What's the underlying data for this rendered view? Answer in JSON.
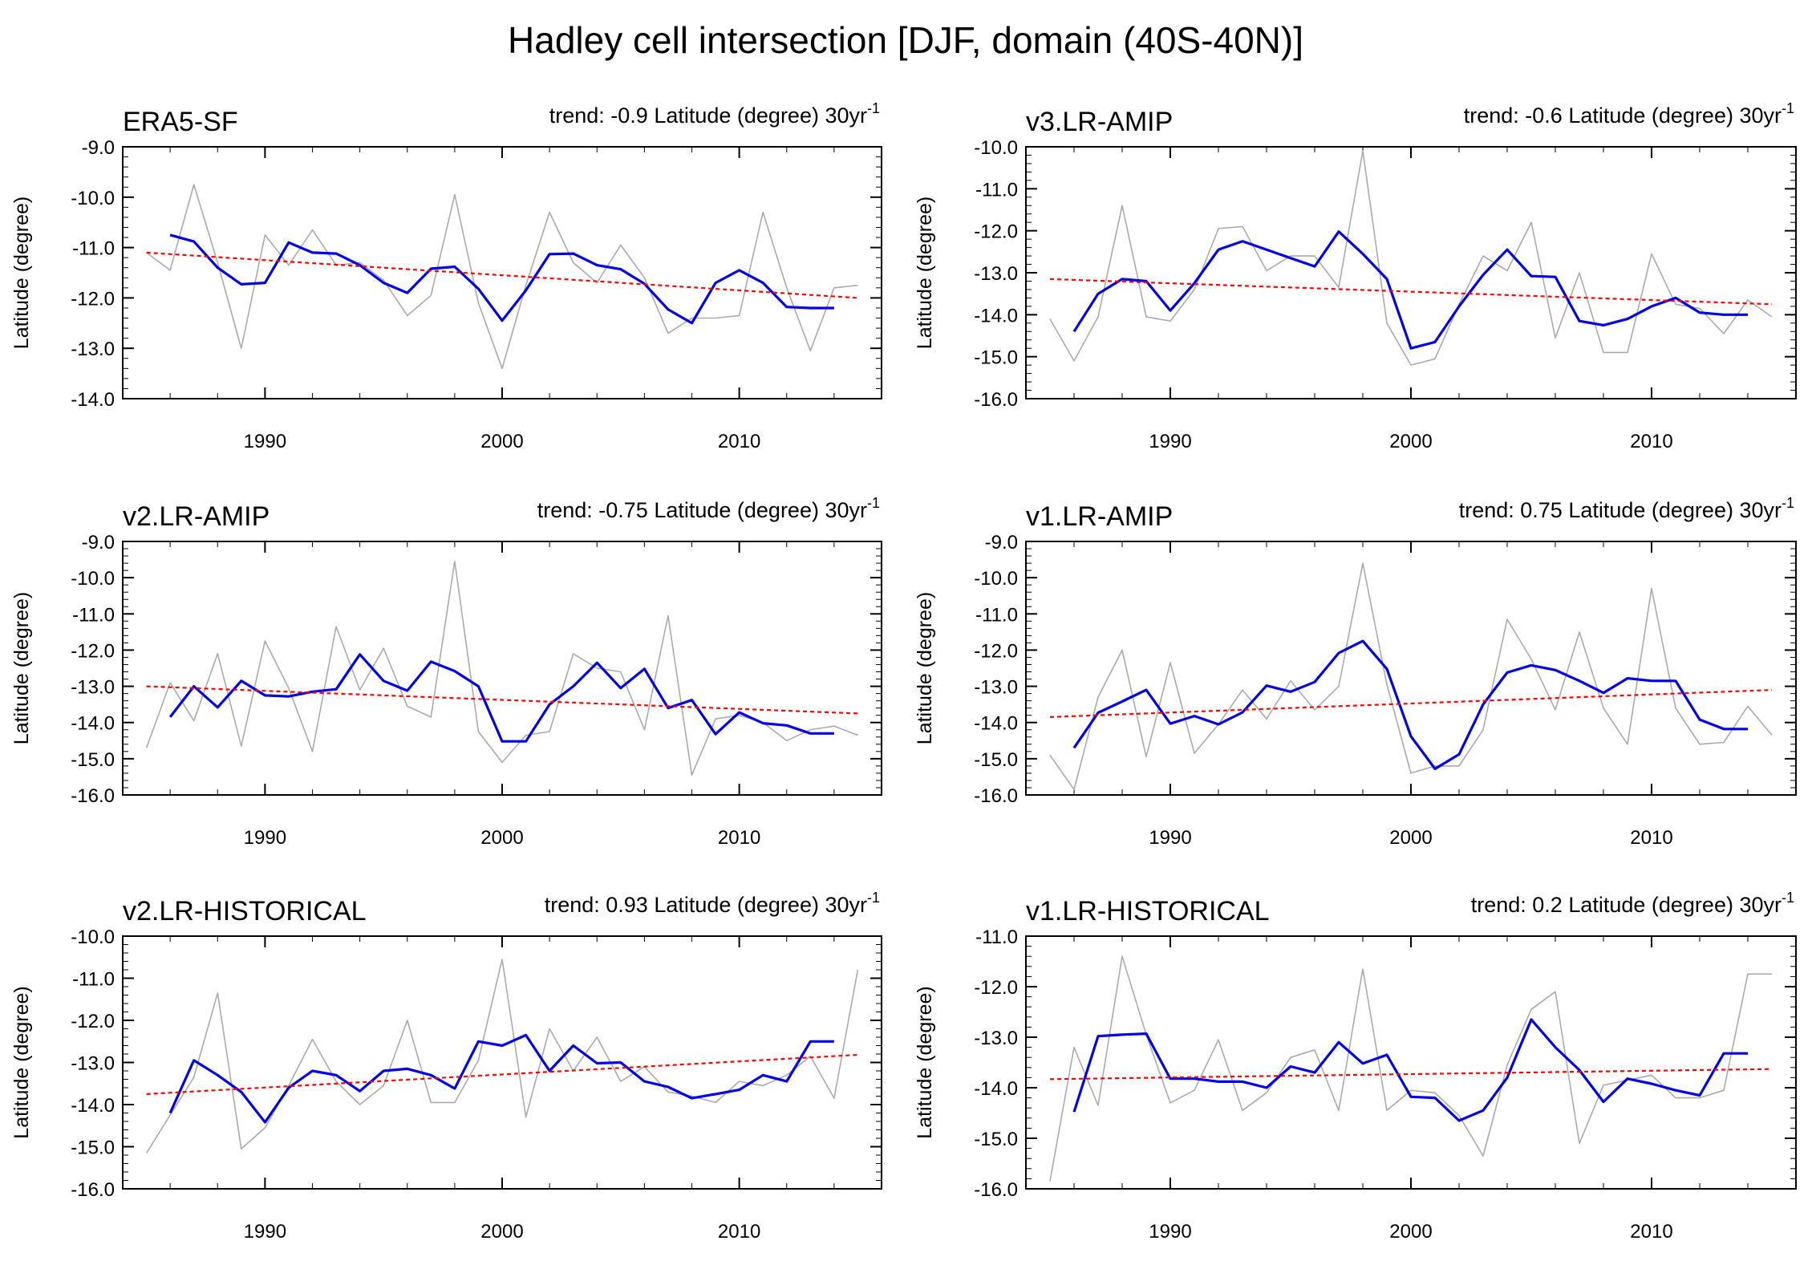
{
  "figure": {
    "title": "Hadley cell intersection [DJF, domain (40S-40N)]"
  },
  "chart_data": [
    {
      "type": "line",
      "panel": "ERA5-SF",
      "trend_label": "trend: -0.9 Latitude (degree) 30yr",
      "trend_superscript": "-1",
      "ylabel": "Latitude (degree)",
      "ylim": [
        -14.0,
        -9.0
      ],
      "yticks": [
        "-9.0",
        "-10.0",
        "-11.0",
        "-12.0",
        "-13.0",
        "-14.0"
      ],
      "xlim": [
        1984,
        2016
      ],
      "xticks": [
        "1990",
        "2000",
        "2010"
      ],
      "series": [
        {
          "name": "annual",
          "color": "#aaaaaa",
          "x": [
            1985,
            1986,
            1987,
            1988,
            1989,
            1990,
            1991,
            1992,
            1993,
            1994,
            1995,
            1996,
            1997,
            1998,
            1999,
            2000,
            2001,
            2002,
            2003,
            2004,
            2005,
            2006,
            2007,
            2008,
            2009,
            2010,
            2011,
            2012,
            2013,
            2014,
            2015
          ],
          "values": [
            -11.1,
            -11.45,
            -9.75,
            -11.3,
            -13.0,
            -10.75,
            -11.35,
            -10.65,
            -11.35,
            -11.3,
            -11.65,
            -12.35,
            -11.95,
            -9.95,
            -12.1,
            -13.4,
            -11.75,
            -10.3,
            -11.3,
            -11.7,
            -10.95,
            -11.6,
            -12.7,
            -12.4,
            -12.4,
            -12.35,
            -10.3,
            -11.8,
            -13.05,
            -11.8,
            -11.75
          ]
        },
        {
          "name": "smoothed",
          "color": "#0000ee",
          "x": [
            1986,
            1987,
            1988,
            1989,
            1990,
            1991,
            1992,
            1993,
            1994,
            1995,
            1996,
            1997,
            1998,
            1999,
            2000,
            2001,
            2002,
            2003,
            2004,
            2005,
            2006,
            2007,
            2008,
            2009,
            2010,
            2011,
            2012,
            2013,
            2014
          ],
          "values": [
            -10.75,
            -10.88,
            -11.4,
            -11.73,
            -11.7,
            -10.9,
            -11.1,
            -11.12,
            -11.35,
            -11.7,
            -11.9,
            -11.42,
            -11.38,
            -11.82,
            -12.45,
            -11.85,
            -11.13,
            -11.12,
            -11.35,
            -11.43,
            -11.72,
            -12.23,
            -12.5,
            -11.7,
            -11.45,
            -11.7,
            -12.18,
            -12.2,
            -12.2
          ]
        },
        {
          "name": "trend",
          "color": "#ff0000",
          "x": [
            1985,
            2015
          ],
          "values": [
            -11.1,
            -12.0
          ]
        }
      ]
    },
    {
      "type": "line",
      "panel": "v3.LR-AMIP",
      "trend_label": "trend: -0.6 Latitude (degree) 30yr",
      "trend_superscript": "-1",
      "ylabel": "Latitude (degree)",
      "ylim": [
        -16.0,
        -10.0
      ],
      "yticks": [
        "-10.0",
        "-11.0",
        "-12.0",
        "-13.0",
        "-14.0",
        "-15.0",
        "-16.0"
      ],
      "xlim": [
        1984,
        2016
      ],
      "xticks": [
        "1990",
        "2000",
        "2010"
      ],
      "series": [
        {
          "name": "annual",
          "color": "#aaaaaa",
          "x": [
            1985,
            1986,
            1987,
            1988,
            1989,
            1990,
            1991,
            1992,
            1993,
            1994,
            1995,
            1996,
            1997,
            1998,
            1999,
            2000,
            2001,
            2002,
            2003,
            2004,
            2005,
            2006,
            2007,
            2008,
            2009,
            2010,
            2011,
            2012,
            2013,
            2014,
            2015
          ],
          "values": [
            -14.1,
            -15.1,
            -14.05,
            -11.4,
            -14.05,
            -14.15,
            -13.4,
            -11.95,
            -11.9,
            -12.95,
            -12.6,
            -12.6,
            -13.35,
            -10.1,
            -14.2,
            -15.2,
            -15.05,
            -13.75,
            -12.6,
            -12.95,
            -11.8,
            -14.55,
            -13.0,
            -14.9,
            -14.9,
            -12.55,
            -13.75,
            -13.85,
            -14.45,
            -13.65,
            -14.05
          ]
        },
        {
          "name": "smoothed",
          "color": "#0000ee",
          "x": [
            1986,
            1987,
            1988,
            1989,
            1990,
            1991,
            1992,
            1993,
            1994,
            1995,
            1996,
            1997,
            1998,
            1999,
            2000,
            2001,
            2002,
            2003,
            2004,
            2005,
            2006,
            2007,
            2008,
            2009,
            2010,
            2011,
            2012,
            2013,
            2014
          ],
          "values": [
            -14.4,
            -13.5,
            -13.15,
            -13.2,
            -13.9,
            -13.25,
            -12.45,
            -12.25,
            -12.45,
            -12.65,
            -12.85,
            -12.02,
            -12.55,
            -13.15,
            -14.8,
            -14.65,
            -13.8,
            -13.05,
            -12.45,
            -13.08,
            -13.1,
            -14.15,
            -14.25,
            -14.1,
            -13.8,
            -13.6,
            -13.95,
            -14.0,
            -14.0
          ]
        },
        {
          "name": "trend",
          "color": "#ff0000",
          "x": [
            1985,
            2015
          ],
          "values": [
            -13.15,
            -13.75
          ]
        }
      ]
    },
    {
      "type": "line",
      "panel": "v2.LR-AMIP",
      "trend_label": "trend: -0.75 Latitude (degree) 30yr",
      "trend_superscript": "-1",
      "ylabel": "Latitude (degree)",
      "ylim": [
        -16.0,
        -9.0
      ],
      "yticks": [
        "-9.0",
        "-10.0",
        "-11.0",
        "-12.0",
        "-13.0",
        "-14.0",
        "-15.0",
        "-16.0"
      ],
      "xlim": [
        1984,
        2016
      ],
      "xticks": [
        "1990",
        "2000",
        "2010"
      ],
      "series": [
        {
          "name": "annual",
          "color": "#aaaaaa",
          "x": [
            1985,
            1986,
            1987,
            1988,
            1989,
            1990,
            1991,
            1992,
            1993,
            1994,
            1995,
            1996,
            1997,
            1998,
            1999,
            2000,
            2001,
            2002,
            2003,
            2004,
            2005,
            2006,
            2007,
            2008,
            2009,
            2010,
            2011,
            2012,
            2013,
            2014,
            2015
          ],
          "values": [
            -14.7,
            -12.9,
            -13.95,
            -12.1,
            -14.65,
            -11.75,
            -13.05,
            -14.8,
            -11.35,
            -13.1,
            -11.95,
            -13.55,
            -13.85,
            -9.55,
            -14.25,
            -15.1,
            -14.35,
            -14.25,
            -12.1,
            -12.5,
            -12.6,
            -14.2,
            -11.05,
            -15.45,
            -13.9,
            -13.8,
            -14.0,
            -14.5,
            -14.2,
            -14.1,
            -14.35
          ]
        },
        {
          "name": "smoothed",
          "color": "#0000ee",
          "x": [
            1986,
            1987,
            1988,
            1989,
            1990,
            1991,
            1992,
            1993,
            1994,
            1995,
            1996,
            1997,
            1998,
            1999,
            2000,
            2001,
            2002,
            2003,
            2004,
            2005,
            2006,
            2007,
            2008,
            2009,
            2010,
            2011,
            2012,
            2013,
            2014
          ],
          "values": [
            -13.85,
            -13.0,
            -13.58,
            -12.85,
            -13.25,
            -13.28,
            -13.15,
            -13.08,
            -12.12,
            -12.85,
            -13.12,
            -12.32,
            -12.58,
            -13.0,
            -14.52,
            -14.52,
            -13.5,
            -13.0,
            -12.35,
            -13.05,
            -12.52,
            -13.6,
            -13.38,
            -14.32,
            -13.72,
            -14.02,
            -14.08,
            -14.3,
            -14.3
          ]
        },
        {
          "name": "trend",
          "color": "#ff0000",
          "x": [
            1985,
            2015
          ],
          "values": [
            -13.0,
            -13.75
          ]
        }
      ]
    },
    {
      "type": "line",
      "panel": "v1.LR-AMIP",
      "trend_label": "trend: 0.75 Latitude (degree) 30yr",
      "trend_superscript": "-1",
      "ylabel": "Latitude (degree)",
      "ylim": [
        -16.0,
        -9.0
      ],
      "yticks": [
        "-9.0",
        "-10.0",
        "-11.0",
        "-12.0",
        "-13.0",
        "-14.0",
        "-15.0",
        "-16.0"
      ],
      "xlim": [
        1984,
        2016
      ],
      "xticks": [
        "1990",
        "2000",
        "2010"
      ],
      "series": [
        {
          "name": "annual",
          "color": "#aaaaaa",
          "x": [
            1985,
            1986,
            1987,
            1988,
            1989,
            1990,
            1991,
            1992,
            1993,
            1994,
            1995,
            1996,
            1997,
            1998,
            1999,
            2000,
            2001,
            2002,
            2003,
            2004,
            2005,
            2006,
            2007,
            2008,
            2009,
            2010,
            2011,
            2012,
            2013,
            2014,
            2015
          ],
          "values": [
            -14.9,
            -15.85,
            -13.3,
            -12.0,
            -14.95,
            -12.35,
            -14.85,
            -14.05,
            -13.1,
            -13.9,
            -12.85,
            -13.65,
            -13.0,
            -9.6,
            -12.95,
            -15.4,
            -15.2,
            -15.2,
            -14.2,
            -11.15,
            -12.25,
            -13.65,
            -11.5,
            -13.6,
            -14.6,
            -10.3,
            -13.6,
            -14.6,
            -14.55,
            -13.55,
            -14.35
          ]
        },
        {
          "name": "smoothed",
          "color": "#0000ee",
          "x": [
            1986,
            1987,
            1988,
            1989,
            1990,
            1991,
            1992,
            1993,
            1994,
            1995,
            1996,
            1997,
            1998,
            1999,
            2000,
            2001,
            2002,
            2003,
            2004,
            2005,
            2006,
            2007,
            2008,
            2009,
            2010,
            2011,
            2012,
            2013,
            2014
          ],
          "values": [
            -14.7,
            -13.73,
            -13.42,
            -13.1,
            -14.03,
            -13.82,
            -14.05,
            -13.72,
            -12.98,
            -13.15,
            -12.88,
            -12.08,
            -11.75,
            -12.52,
            -14.38,
            -15.28,
            -14.88,
            -13.5,
            -12.62,
            -12.42,
            -12.55,
            -12.85,
            -13.18,
            -12.78,
            -12.85,
            -12.85,
            -13.92,
            -14.18,
            -14.18
          ]
        },
        {
          "name": "trend",
          "color": "#ff0000",
          "x": [
            1985,
            2015
          ],
          "values": [
            -13.85,
            -13.1
          ]
        }
      ]
    },
    {
      "type": "line",
      "panel": "v2.LR-HISTORICAL",
      "trend_label": "trend: 0.93 Latitude (degree) 30yr",
      "trend_superscript": "-1",
      "ylabel": "Latitude (degree)",
      "ylim": [
        -16.0,
        -10.0
      ],
      "yticks": [
        "-10.0",
        "-11.0",
        "-12.0",
        "-13.0",
        "-14.0",
        "-15.0",
        "-16.0"
      ],
      "xlim": [
        1984,
        2016
      ],
      "xticks": [
        "1990",
        "2000",
        "2010"
      ],
      "series": [
        {
          "name": "annual",
          "color": "#aaaaaa",
          "x": [
            1985,
            1986,
            1987,
            1988,
            1989,
            1990,
            1991,
            1992,
            1993,
            1994,
            1995,
            1996,
            1997,
            1998,
            1999,
            2000,
            2001,
            2002,
            2003,
            2004,
            2005,
            2006,
            2007,
            2008,
            2009,
            2010,
            2011,
            2012,
            2013,
            2014,
            2015
          ],
          "values": [
            -15.15,
            -14.25,
            -13.35,
            -11.35,
            -15.05,
            -14.55,
            -13.55,
            -12.45,
            -13.45,
            -14.0,
            -13.55,
            -12.0,
            -13.95,
            -13.95,
            -12.95,
            -10.55,
            -14.3,
            -12.2,
            -13.2,
            -12.4,
            -13.45,
            -13.1,
            -13.7,
            -13.8,
            -13.95,
            -13.45,
            -13.55,
            -13.3,
            -12.85,
            -13.85,
            -10.8
          ]
        },
        {
          "name": "smoothed",
          "color": "#0000ee",
          "x": [
            1986,
            1987,
            1988,
            1989,
            1990,
            1991,
            1992,
            1993,
            1994,
            1995,
            1996,
            1997,
            1998,
            1999,
            2000,
            2001,
            2002,
            2003,
            2004,
            2005,
            2006,
            2007,
            2008,
            2009,
            2010,
            2011,
            2012,
            2013,
            2014
          ],
          "values": [
            -14.2,
            -12.95,
            -13.3,
            -13.7,
            -14.42,
            -13.6,
            -13.2,
            -13.3,
            -13.68,
            -13.2,
            -13.15,
            -13.3,
            -13.62,
            -12.5,
            -12.6,
            -12.35,
            -13.2,
            -12.6,
            -13.02,
            -13.0,
            -13.45,
            -13.58,
            -13.85,
            -13.75,
            -13.65,
            -13.3,
            -13.45,
            -12.5,
            -12.5
          ]
        },
        {
          "name": "trend",
          "color": "#ff0000",
          "x": [
            1985,
            2015
          ],
          "values": [
            -13.75,
            -12.82
          ]
        }
      ]
    },
    {
      "type": "line",
      "panel": "v1.LR-HISTORICAL",
      "trend_label": "trend: 0.2 Latitude (degree) 30yr",
      "trend_superscript": "-1",
      "ylabel": "Latitude (degree)",
      "ylim": [
        -16.0,
        -11.0
      ],
      "yticks": [
        "-11.0",
        "-12.0",
        "-13.0",
        "-14.0",
        "-15.0",
        "-16.0"
      ],
      "xlim": [
        1984,
        2016
      ],
      "xticks": [
        "1990",
        "2000",
        "2010"
      ],
      "series": [
        {
          "name": "annual",
          "color": "#aaaaaa",
          "x": [
            1985,
            1986,
            1987,
            1988,
            1989,
            1990,
            1991,
            1992,
            1993,
            1994,
            1995,
            1996,
            1997,
            1998,
            1999,
            2000,
            2001,
            2002,
            2003,
            2004,
            2005,
            2006,
            2007,
            2008,
            2009,
            2010,
            2011,
            2012,
            2013,
            2014,
            2015
          ],
          "values": [
            -15.85,
            -13.2,
            -14.35,
            -11.4,
            -12.95,
            -14.3,
            -14.05,
            -13.05,
            -14.45,
            -14.1,
            -13.4,
            -13.25,
            -14.45,
            -11.65,
            -14.45,
            -14.05,
            -14.1,
            -14.55,
            -15.35,
            -13.55,
            -12.45,
            -12.1,
            -15.1,
            -13.95,
            -13.85,
            -13.75,
            -14.2,
            -14.2,
            -14.05,
            -11.75,
            -11.75
          ]
        },
        {
          "name": "smoothed",
          "color": "#0000ee",
          "x": [
            1986,
            1987,
            1988,
            1989,
            1990,
            1991,
            1992,
            1993,
            1994,
            1995,
            1996,
            1997,
            1998,
            1999,
            2000,
            2001,
            2002,
            2003,
            2004,
            2005,
            2006,
            2007,
            2008,
            2009,
            2010,
            2011,
            2012,
            2013,
            2014
          ],
          "values": [
            -14.48,
            -12.98,
            -12.95,
            -12.93,
            -13.82,
            -13.82,
            -13.88,
            -13.88,
            -14.0,
            -13.58,
            -13.7,
            -13.1,
            -13.52,
            -13.35,
            -14.18,
            -14.2,
            -14.65,
            -14.45,
            -13.8,
            -12.65,
            -13.2,
            -13.65,
            -14.28,
            -13.82,
            -13.92,
            -14.05,
            -14.15,
            -13.32,
            -13.32
          ]
        },
        {
          "name": "trend",
          "color": "#ff0000",
          "x": [
            1985,
            2015
          ],
          "values": [
            -13.83,
            -13.63
          ]
        }
      ]
    }
  ]
}
